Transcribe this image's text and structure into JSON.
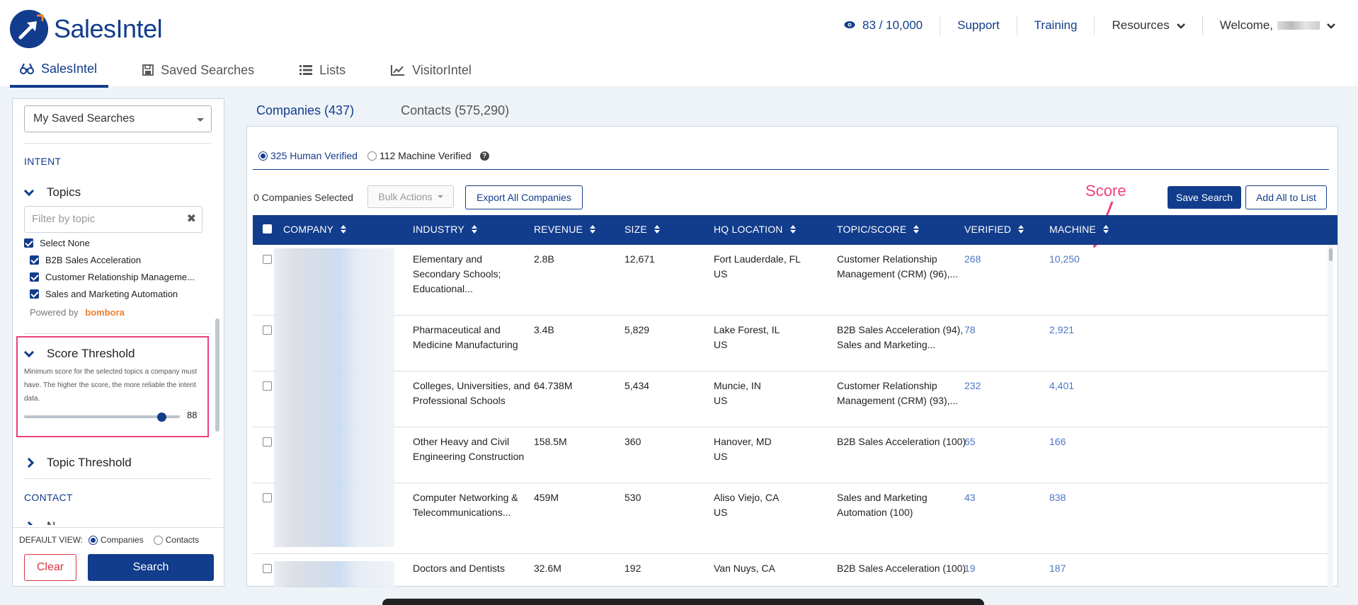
{
  "header": {
    "logo_text": "SalesIntel",
    "credits": "83 / 10,000",
    "support": "Support",
    "training": "Training",
    "resources": "Resources",
    "welcome": "Welcome,"
  },
  "nav": {
    "items": [
      {
        "label": "SalesIntel",
        "icon": "binoculars-icon",
        "active": true
      },
      {
        "label": "Saved Searches",
        "icon": "floppy-disk-icon"
      },
      {
        "label": "Lists",
        "icon": "list-icon"
      },
      {
        "label": "VisitorIntel",
        "icon": "line-chart-icon"
      }
    ]
  },
  "sidebar": {
    "saved_searches_select": "My Saved Searches",
    "intent_title": "INTENT",
    "topics_title": "Topics",
    "filter_placeholder": "Filter by topic",
    "select_none": "Select None",
    "topics": [
      "B2B Sales Acceleration",
      "Customer Relationship Manageme...",
      "Sales and Marketing Automation"
    ],
    "powered_by": "Powered by",
    "powered_brand": "bombora",
    "score_threshold": {
      "title": "Score Threshold",
      "help": "Minimum score for the selected topics a company must have. The higher the score, the more reliable the intent data.",
      "value": "88",
      "fraction": 0.88
    },
    "topic_threshold_title": "Topic Threshold",
    "contact_title": "CONTACT",
    "contact_partial": "N",
    "default_view_label": "DEFAULT VIEW:",
    "default_view_options": [
      "Companies",
      "Contacts"
    ],
    "clear_label": "Clear",
    "search_label": "Search"
  },
  "main": {
    "tabs": [
      {
        "label": "Companies (437)",
        "active": true
      },
      {
        "label": "Contacts (575,290)"
      }
    ],
    "human_verified": "325 Human Verified",
    "machine_verified": "112 Machine Verified",
    "help_icon": "?",
    "selected_count": "0 Companies Selected",
    "bulk_actions": "Bulk Actions",
    "export_all": "Export All Companies",
    "save_search": "Save Search",
    "add_all": "Add All to List",
    "annotation": "Score",
    "columns": [
      "COMPANY",
      "INDUSTRY",
      "REVENUE",
      "SIZE",
      "HQ LOCATION",
      "TOPIC/SCORE",
      "VERIFIED",
      "MACHINE"
    ],
    "rows": [
      {
        "industry": "Elementary and Secondary Schools; Educational...",
        "revenue": "2.8B",
        "size": "12,671",
        "hq_city": "Fort Lauderdale, FL",
        "hq_country": "US",
        "topic": "Customer Relationship Management (CRM) (96),...",
        "verified": "268",
        "machine": "10,250"
      },
      {
        "industry": "Pharmaceutical and Medicine Manufacturing",
        "revenue": "3.4B",
        "size": "5,829",
        "hq_city": "Lake Forest, IL",
        "hq_country": "US",
        "topic": "B2B Sales Acceleration (94), Sales and Marketing...",
        "verified": "78",
        "machine": "2,921"
      },
      {
        "industry": "Colleges, Universities, and Professional Schools",
        "revenue": "64.738M",
        "size": "5,434",
        "hq_city": "Muncie, IN",
        "hq_country": "US",
        "topic": "Customer Relationship Management (CRM) (93),...",
        "verified": "232",
        "machine": "4,401"
      },
      {
        "industry": "Other Heavy and Civil Engineering Construction",
        "revenue": "158.5M",
        "size": "360",
        "hq_city": "Hanover, MD",
        "hq_country": "US",
        "topic": "B2B Sales Acceleration (100)",
        "verified": "65",
        "machine": "166"
      },
      {
        "industry": "Computer Networking & Telecommunications...",
        "revenue": "459M",
        "size": "530",
        "hq_city": "Aliso Viejo, CA",
        "hq_country": "US",
        "topic": "Sales and Marketing Automation (100)",
        "verified": "43",
        "machine": "838"
      },
      {
        "industry": "Doctors and Dentists",
        "revenue": "32.6M",
        "size": "192",
        "hq_city": "Van Nuys, CA",
        "hq_country": "",
        "topic": "B2B Sales Acceleration (100)",
        "verified": "19",
        "machine": "187"
      }
    ]
  },
  "colors": {
    "brand": "#123c8c",
    "accent": "#1e90ff",
    "highlight": "#e8417a",
    "danger": "#d9353e",
    "bombora": "#f07d2b"
  }
}
